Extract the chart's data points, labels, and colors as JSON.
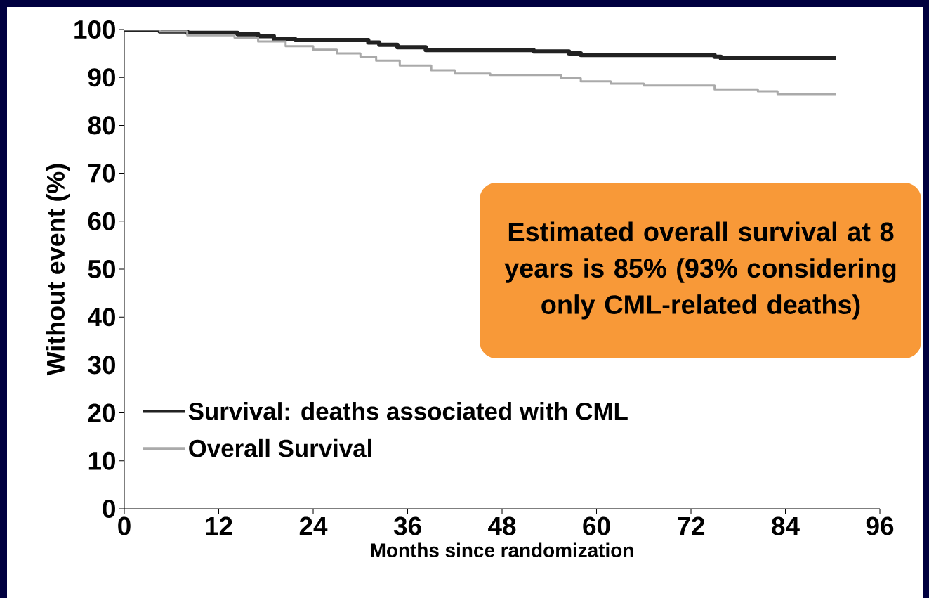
{
  "chart_data": {
    "type": "step",
    "xlabel": "Months since randomization",
    "ylabel": "Without event (%)",
    "xlim": [
      0,
      96
    ],
    "ylim": [
      0,
      100
    ],
    "xticks": [
      0,
      12,
      24,
      36,
      48,
      60,
      72,
      84,
      96
    ],
    "yticks": [
      0,
      10,
      20,
      30,
      40,
      50,
      60,
      70,
      80,
      90,
      100
    ],
    "legend": "bottom left",
    "annotations": [
      "Estimated overall survival at 8 years is 85% (93% considering only CML-related deaths)"
    ],
    "series": [
      {
        "name": "Survival: deaths associated with CML",
        "color": "#222222",
        "x": [
          0,
          4.5,
          8,
          14.4,
          17,
          19,
          21.7,
          31,
          32.4,
          34.7,
          38.3,
          52,
          56.5,
          58,
          75,
          75.8,
          90.4
        ],
        "values": [
          100,
          99.6,
          99.3,
          99,
          98.6,
          98,
          97.8,
          97.3,
          96.8,
          96.3,
          95.7,
          95.4,
          95,
          94.7,
          94.3,
          94,
          94
        ]
      },
      {
        "name": "Overall Survival",
        "color": "#aaaaaa",
        "x": [
          0,
          4.5,
          8,
          14,
          17,
          20.5,
          24,
          27,
          30,
          32,
          35,
          39,
          42,
          46.5,
          55.5,
          58,
          61.8,
          66,
          75,
          80.5,
          83,
          90.4
        ],
        "values": [
          100,
          99.6,
          98.8,
          98.3,
          97.5,
          96.5,
          95.8,
          95,
          94.3,
          93.5,
          92.5,
          91.5,
          90.8,
          90.5,
          89.8,
          89.2,
          88.7,
          88.3,
          87.5,
          87.1,
          86.5,
          86.5
        ]
      }
    ]
  }
}
